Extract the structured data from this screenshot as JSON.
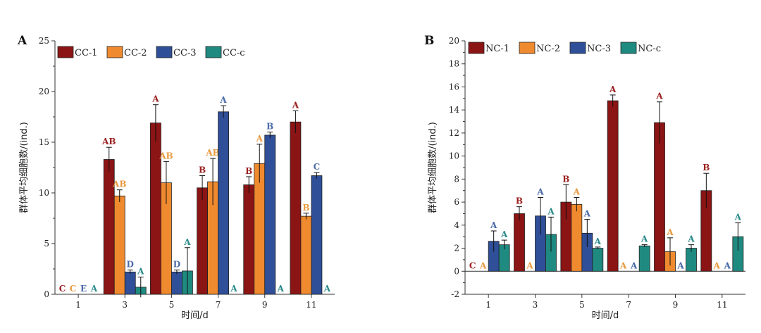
{
  "colors": {
    "s1": "#8b1414",
    "s2": "#ef8a2f",
    "s3": "#2f4f98",
    "s4": "#1f8a80",
    "s4_label": "#2a8a8a",
    "s3_label": "#4a6aa8",
    "s2_label": "#e89a40",
    "s1_label": "#9b2020"
  },
  "chart_data": [
    {
      "type": "bar",
      "panel_label": "A",
      "xlabel": "时间/d",
      "ylabel": "群体平均细胞数/(ind.)",
      "categories": [
        "1",
        "3",
        "5",
        "7",
        "9",
        "11"
      ],
      "ylim": [
        0,
        25
      ],
      "yticks": [
        "0",
        "5",
        "10",
        "15",
        "20",
        "25"
      ],
      "grid": false,
      "legend": "top",
      "series": [
        {
          "name": "CC-1",
          "values": [
            0,
            13.3,
            16.9,
            10.5,
            10.8,
            17.0
          ],
          "errors": [
            0,
            1.2,
            1.8,
            1.2,
            0.8,
            1.1
          ],
          "letters": [
            "C",
            "AB",
            "A",
            "B",
            "B",
            "A"
          ]
        },
        {
          "name": "CC-2",
          "values": [
            0,
            9.7,
            11.0,
            11.1,
            12.9,
            7.7
          ],
          "errors": [
            0,
            0.6,
            2.1,
            2.3,
            1.9,
            0.3
          ],
          "letters": [
            "C",
            "AB",
            "AB",
            "AB",
            "A",
            "B"
          ]
        },
        {
          "name": "CC-3",
          "values": [
            0,
            2.2,
            2.2,
            18.0,
            15.7,
            11.7
          ],
          "errors": [
            0,
            0.2,
            0.2,
            0.6,
            0.3,
            0.3
          ],
          "letters": [
            "E",
            "D",
            "D",
            "A",
            "B",
            "C"
          ]
        },
        {
          "name": "CC-c",
          "values": [
            0,
            0.7,
            2.3,
            0,
            0,
            0
          ],
          "errors": [
            0,
            1.0,
            2.3,
            0,
            0,
            0
          ],
          "letters": [
            "A",
            "A",
            "A",
            "A",
            "A",
            "A"
          ]
        }
      ]
    },
    {
      "type": "bar",
      "panel_label": "B",
      "xlabel": "时间/d",
      "ylabel": "群体平均细胞数/(ind.)",
      "categories": [
        "1",
        "3",
        "5",
        "7",
        "9",
        "11"
      ],
      "ylim": [
        -2,
        20
      ],
      "yticks": [
        "-2",
        "0",
        "2",
        "4",
        "6",
        "8",
        "10",
        "12",
        "14",
        "16",
        "18",
        "20"
      ],
      "grid": false,
      "legend": "top",
      "series": [
        {
          "name": "NC-1",
          "values": [
            0,
            5.0,
            6.0,
            14.8,
            12.9,
            7.0
          ],
          "errors": [
            0,
            0.6,
            1.5,
            0.5,
            1.8,
            1.5
          ],
          "letters": [
            "C",
            "B",
            "B",
            "A",
            "A",
            "B"
          ]
        },
        {
          "name": "NC-2",
          "values": [
            0,
            0,
            5.8,
            0,
            1.7,
            0
          ],
          "errors": [
            0,
            0,
            0.6,
            0,
            1.2,
            0
          ],
          "letters": [
            "A",
            "A",
            "A",
            "A",
            "A",
            "A"
          ]
        },
        {
          "name": "NC-3",
          "values": [
            2.6,
            4.8,
            3.3,
            0,
            0,
            0
          ],
          "errors": [
            0.9,
            1.6,
            1.2,
            0,
            0,
            0
          ],
          "letters": [
            "A",
            "A",
            "A",
            "A",
            "A",
            "A"
          ]
        },
        {
          "name": "NC-c",
          "values": [
            2.3,
            3.2,
            2.0,
            2.2,
            2.0,
            3.0
          ],
          "errors": [
            0.4,
            1.5,
            0.1,
            0.1,
            0.3,
            1.2
          ],
          "letters": [
            "A",
            "A",
            "A",
            "A",
            "A",
            "A"
          ]
        }
      ]
    }
  ]
}
